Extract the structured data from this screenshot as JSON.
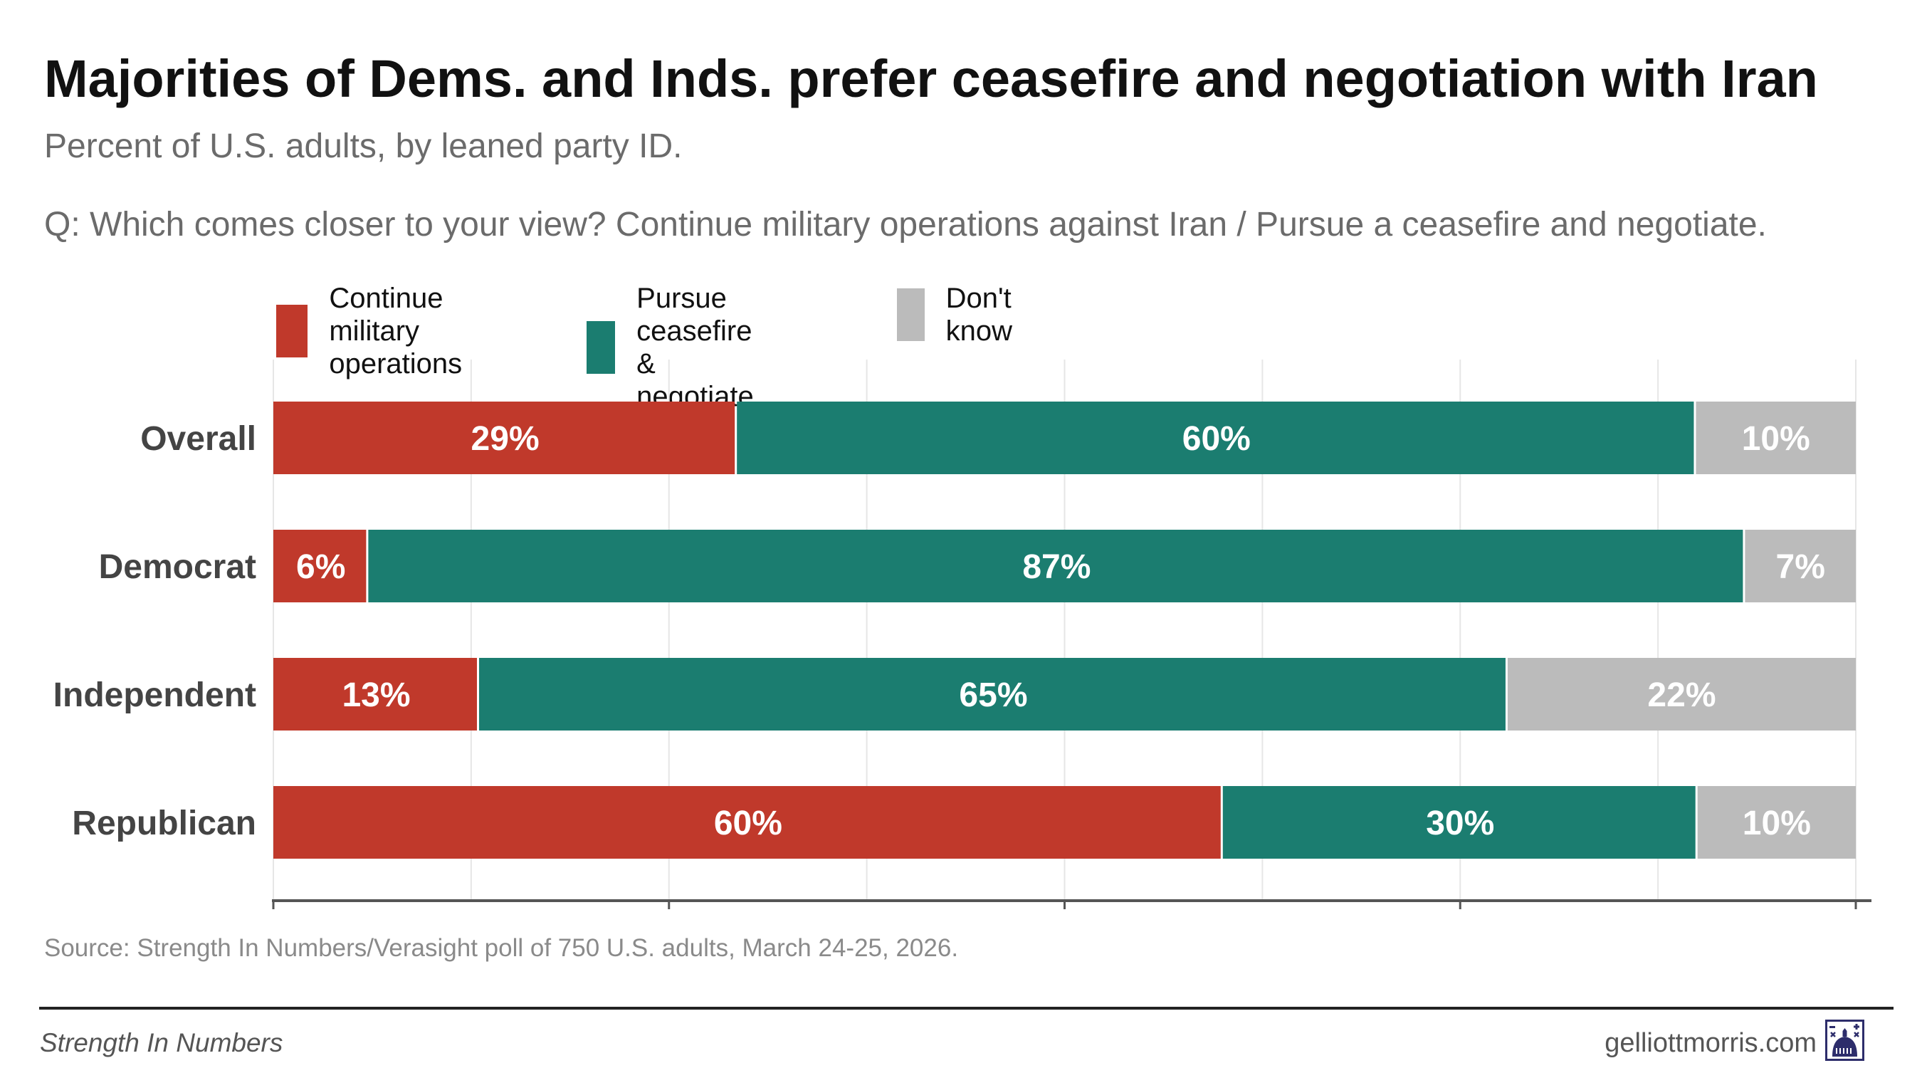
{
  "title": "Majorities of Dems. and Inds. prefer ceasefire and negotiation with Iran",
  "subtitle": "Percent of U.S. adults, by leaned party ID.",
  "question": "Q: Which comes closer to your view? Continue military operations against Iran / Pursue a ceasefire and negotiate.",
  "source": "Source: Strength In Numbers/Verasight poll of 750 U.S. adults, March 24-25, 2026.",
  "footer": {
    "brand": "Strength In Numbers",
    "site": "gelliottmorris.com",
    "logo_icon": "capitol-dome-logo-icon"
  },
  "chart_data": {
    "type": "bar",
    "orientation": "horizontal",
    "stacked": true,
    "categories": [
      "Overall",
      "Democrat",
      "Independent",
      "Republican"
    ],
    "series": [
      {
        "name": "Continue military\noperations",
        "color": "#c0392b",
        "values": [
          29,
          6,
          13,
          60
        ],
        "labels": [
          "29%",
          "6%",
          "13%",
          "60%"
        ]
      },
      {
        "name": "Pursue ceasefire\n& negotiate",
        "color": "#1b7d70",
        "values": [
          60,
          87,
          65,
          30
        ],
        "labels": [
          "60%",
          "87%",
          "65%",
          "30%"
        ]
      },
      {
        "name": "Don't know",
        "color": "#bbbbbb",
        "values": [
          10,
          7,
          22,
          10
        ],
        "labels": [
          "10%",
          "7%",
          "22%",
          "10%"
        ]
      }
    ],
    "xlim": [
      0,
      100
    ],
    "x_ticks": [
      0,
      25,
      50,
      75,
      100
    ],
    "grid": true,
    "legend_position": "top"
  }
}
